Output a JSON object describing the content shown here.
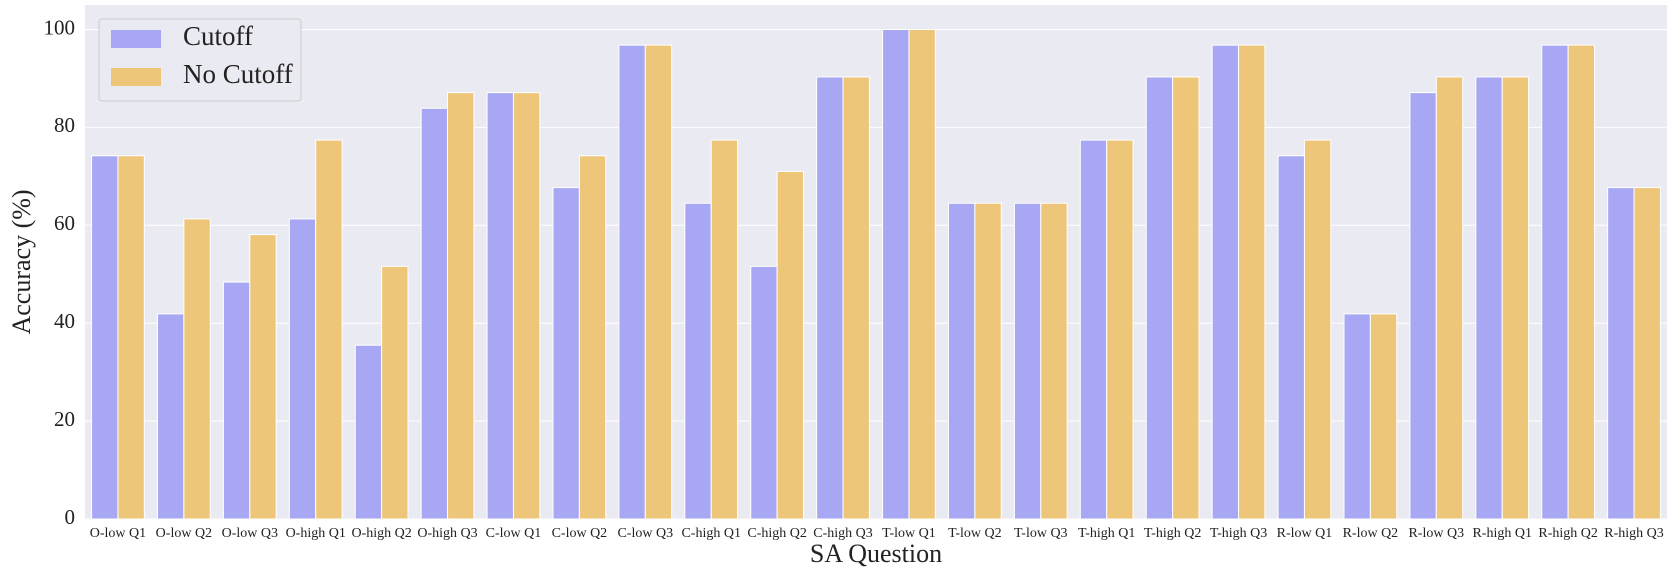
{
  "chart_data": {
    "type": "bar",
    "x_label": "SA Question",
    "y_label": "Accuracy (%)",
    "categories": [
      "O-low Q1",
      "O-low Q2",
      "O-low Q3",
      "O-high Q1",
      "O-high Q2",
      "O-high Q3",
      "C-low Q1",
      "C-low Q2",
      "C-low Q3",
      "C-high Q1",
      "C-high Q2",
      "C-high Q3",
      "T-low Q1",
      "T-low Q2",
      "T-low Q3",
      "T-high Q1",
      "T-high Q2",
      "T-high Q3",
      "R-low Q1",
      "R-low Q2",
      "R-low Q3",
      "R-high Q1",
      "R-high Q2",
      "R-high Q3"
    ],
    "series": [
      {
        "name": "Cutoff",
        "color": "#a7a7f4",
        "values": [
          74.2,
          41.9,
          48.4,
          61.3,
          35.5,
          83.9,
          87.1,
          67.7,
          96.8,
          64.5,
          51.6,
          90.3,
          100,
          64.5,
          64.5,
          77.4,
          90.3,
          96.8,
          74.2,
          41.9,
          87.1,
          90.3,
          96.8,
          67.7
        ]
      },
      {
        "name": "No Cutoff",
        "color": "#edc67a",
        "values": [
          74.2,
          61.3,
          58.1,
          77.4,
          51.6,
          87.1,
          87.1,
          74.2,
          96.8,
          77.4,
          71.0,
          90.3,
          100,
          64.5,
          64.5,
          77.4,
          90.3,
          96.8,
          77.4,
          41.9,
          90.3,
          90.3,
          96.8,
          67.7
        ]
      }
    ],
    "ylim": [
      0,
      105
    ],
    "yticks": [
      0,
      20,
      40,
      60,
      80,
      100
    ],
    "grid": true,
    "legend": "upper left"
  }
}
